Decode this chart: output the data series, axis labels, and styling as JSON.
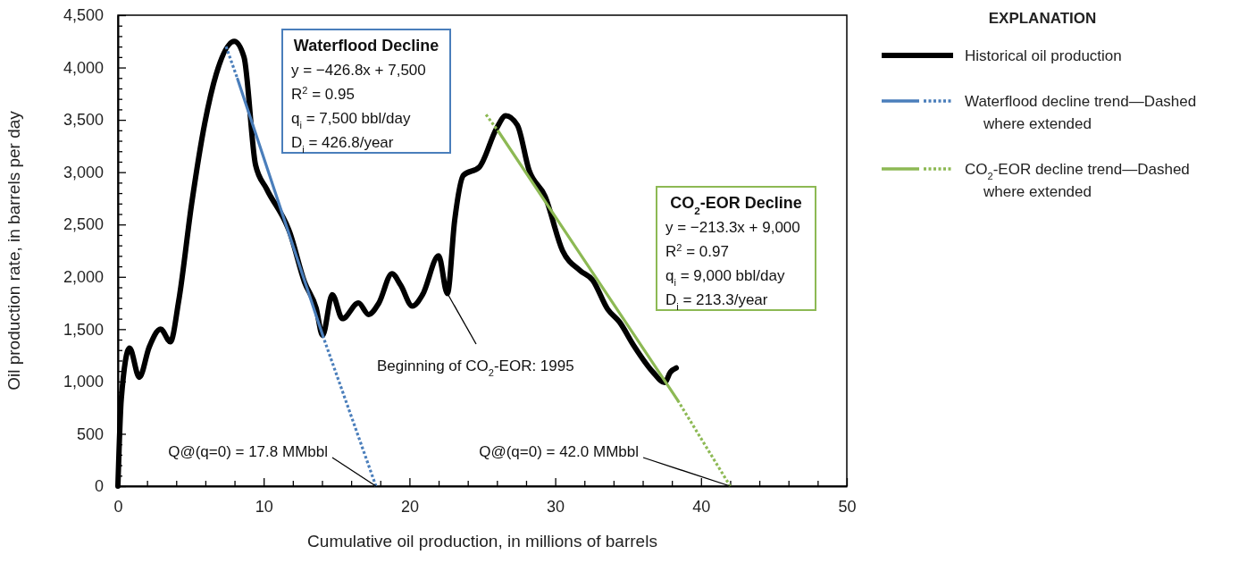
{
  "chart_data": {
    "type": "line",
    "xlabel": "Cumulative oil production, in millions of barrels",
    "ylabel": "Oil production rate, in barrels per day",
    "legend_title": "EXPLANATION",
    "legend": "right",
    "grid": false,
    "marker": "none",
    "xlim": [
      0,
      50
    ],
    "ylim": [
      0,
      4500
    ],
    "xticks": [
      0,
      {
        "value": 2,
        "label": null
      },
      {
        "value": 4,
        "label": null
      },
      {
        "value": 6,
        "label": null
      },
      {
        "value": 8,
        "label": null
      },
      10,
      {
        "value": 12,
        "label": null
      },
      {
        "value": 14,
        "label": null
      },
      {
        "value": 16,
        "label": null
      },
      {
        "value": 18,
        "label": null
      },
      20,
      {
        "value": 22,
        "label": null
      },
      {
        "value": 24,
        "label": null
      },
      {
        "value": 26,
        "label": null
      },
      {
        "value": 28,
        "label": null
      },
      30,
      {
        "value": 32,
        "label": null
      },
      {
        "value": 34,
        "label": null
      },
      {
        "value": 36,
        "label": null
      },
      {
        "value": 38,
        "label": null
      },
      40,
      {
        "value": 42,
        "label": null
      },
      {
        "value": 44,
        "label": null
      },
      {
        "value": 46,
        "label": null
      },
      {
        "value": 48,
        "label": null
      },
      50
    ],
    "yticks": [
      0,
      {
        "value": 100,
        "label": null
      },
      {
        "value": 200,
        "label": null
      },
      {
        "value": 300,
        "label": null
      },
      {
        "value": 400,
        "label": null
      },
      500,
      {
        "value": 600,
        "label": null
      },
      {
        "value": 700,
        "label": null
      },
      {
        "value": 800,
        "label": null
      },
      {
        "value": 900,
        "label": null
      },
      {
        "value": 1000,
        "label": "1,000"
      },
      {
        "value": 1100,
        "label": null
      },
      {
        "value": 1200,
        "label": null
      },
      {
        "value": 1300,
        "label": null
      },
      {
        "value": 1400,
        "label": null
      },
      {
        "value": 1500,
        "label": "1,500"
      },
      {
        "value": 1600,
        "label": null
      },
      {
        "value": 1700,
        "label": null
      },
      {
        "value": 1800,
        "label": null
      },
      {
        "value": 1900,
        "label": null
      },
      {
        "value": 2000,
        "label": "2,000"
      },
      {
        "value": 2100,
        "label": null
      },
      {
        "value": 2200,
        "label": null
      },
      {
        "value": 2300,
        "label": null
      },
      {
        "value": 2400,
        "label": null
      },
      {
        "value": 2500,
        "label": "2,500"
      },
      {
        "value": 2600,
        "label": null
      },
      {
        "value": 2700,
        "label": null
      },
      {
        "value": 2800,
        "label": null
      },
      {
        "value": 2900,
        "label": null
      },
      {
        "value": 3000,
        "label": "3,000"
      },
      {
        "value": 3100,
        "label": null
      },
      {
        "value": 3200,
        "label": null
      },
      {
        "value": 3300,
        "label": null
      },
      {
        "value": 3400,
        "label": null
      },
      {
        "value": 3500,
        "label": "3,500"
      },
      {
        "value": 3600,
        "label": null
      },
      {
        "value": 3700,
        "label": null
      },
      {
        "value": 3800,
        "label": null
      },
      {
        "value": 3900,
        "label": null
      },
      {
        "value": 4000,
        "label": "4,000"
      },
      {
        "value": 4100,
        "label": null
      },
      {
        "value": 4200,
        "label": null
      },
      {
        "value": 4300,
        "label": null
      },
      {
        "value": 4400,
        "label": null
      },
      {
        "value": 4500,
        "label": "4,500"
      }
    ],
    "series": [
      {
        "name": "Historical oil production",
        "color": "#000000",
        "line_style": "solid",
        "x": [
          0,
          0.23,
          0.8,
          1.47,
          2.15,
          2.93,
          3.6,
          4.17,
          5.06,
          5.96,
          6.75,
          7.98,
          8.65,
          9.44,
          10.2,
          11.8,
          12.8,
          13.6,
          14.04,
          14.7,
          15.4,
          16.5,
          17.2,
          17.9,
          18.8,
          19.4,
          20.2,
          20.9,
          22.0,
          22.6,
          23.1,
          23.7,
          24.8,
          25.98,
          26.6,
          27.4,
          28.2,
          29.3,
          30.5,
          31.7,
          32.56,
          33.6,
          34.4,
          35.4,
          36.7,
          37.5,
          37.9,
          38.3
        ],
        "values": [
          0,
          830,
          1320,
          1040,
          1330,
          1500,
          1380,
          1770,
          2700,
          3470,
          3940,
          4250,
          4100,
          3070,
          2840,
          2420,
          1950,
          1700,
          1440,
          1830,
          1600,
          1750,
          1640,
          1750,
          2030,
          1920,
          1720,
          1830,
          2200,
          1840,
          2540,
          2970,
          3050,
          3420,
          3540,
          3450,
          3020,
          2770,
          2250,
          2060,
          1970,
          1690,
          1570,
          1340,
          1090,
          990,
          1090,
          1130
        ]
      },
      {
        "name": "Waterflood decline trend—Dashed where extended",
        "color": "#4a7ebb",
        "line_style": "solid",
        "x": [
          8.21,
          14.05
        ],
        "values": [
          3890,
          1440
        ]
      },
      {
        "color": "#4a7ebb",
        "line_style": "dotted",
        "x": [
          7.42,
          8.21
        ],
        "values": [
          4200,
          3890
        ]
      },
      {
        "color": "#4a7ebb",
        "line_style": "dotted",
        "x": [
          14.05,
          17.7
        ],
        "values": [
          1440,
          0
        ]
      },
      {
        "name": "CO$_{2}$-EOR decline trend—Dashed where extended",
        "color": "#8db954",
        "line_style": "solid",
        "x": [
          26.1,
          38.4
        ],
        "values": [
          3390,
          820
        ]
      },
      {
        "color": "#8db954",
        "line_style": "dotted",
        "x": [
          25.25,
          26.1
        ],
        "values": [
          3550,
          3390
        ]
      },
      {
        "color": "#8db954",
        "line_style": "dotted",
        "x": [
          38.4,
          42.0
        ],
        "values": [
          820,
          0
        ]
      }
    ],
    "annotations": [
      "Waterflood Decline\ny = −426.8x + 7,500\nR$^{2}$ = 0.95\nq$_{i}$ = 7,500 bbl/day\nD$_{i}$ = 426.8/year",
      "CO$_{2}$-EOR Decline\ny = −213.3x + 9,000\nR$^{2}$ = 0.97\nq$_{i}$ = 9,000 bbl/day\nD$_{i}$ = 213.3/year",
      {
        "text": "Beginning of CO$_{2}$-EOR: 1995",
        "x": 22.6,
        "y": 1842
      },
      {
        "text": "Q@(q=0) = 17.8 MMbbl",
        "x": 17.7,
        "y": 0
      },
      {
        "text": "Q@(q=0) = 42.0 MMbbl",
        "x": 42.0,
        "y": 0
      }
    ]
  }
}
